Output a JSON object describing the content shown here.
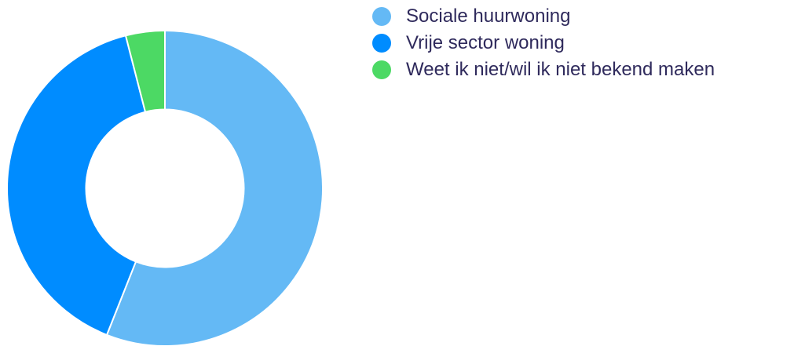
{
  "chart_data": {
    "type": "pie",
    "title": "",
    "hole": 0.5,
    "legend": "right",
    "labels": [
      "Sociale huurwoning",
      "Vrije sector woning",
      "Weet ik niet/wil ik niet bekend maken"
    ],
    "values": [
      56,
      40,
      4
    ],
    "colors": [
      "#64b9f5",
      "#008cff",
      "#4cd964"
    ],
    "start_angle_deg": 0,
    "direction": "clockwise"
  }
}
